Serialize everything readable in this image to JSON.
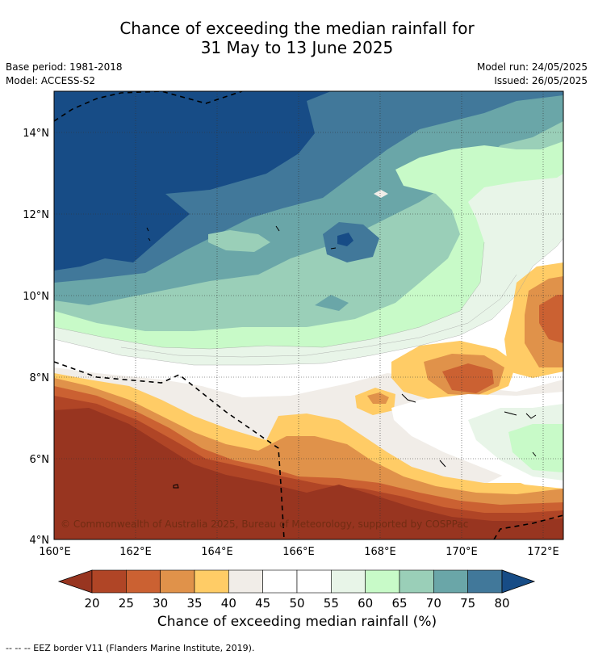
{
  "header": {
    "title_line1": "Chance of exceeding the median rainfall for",
    "title_line2": "31 May to 13 June 2025",
    "base_period": "Base period: 1981-2018",
    "model": "Model: ACCESS-S2",
    "model_run": "Model run: 24/05/2025",
    "issued": "Issued: 26/05/2025"
  },
  "map": {
    "lat_labels": [
      "14°N",
      "12°N",
      "10°N",
      "8°N",
      "6°N",
      "4°N"
    ],
    "lon_labels": [
      "160°E",
      "162°E",
      "164°E",
      "166°E",
      "168°E",
      "170°E",
      "172°E"
    ],
    "copyright": "© Commonwealth of Australia 2025, Bureau of Meteorology, supported by COSPPac",
    "extent": {
      "lon": [
        160,
        172.5
      ],
      "lat": [
        4,
        15
      ]
    }
  },
  "colorbar": {
    "ticks": [
      "20",
      "25",
      "30",
      "35",
      "40",
      "45",
      "50",
      "55",
      "60",
      "65",
      "70",
      "75",
      "80"
    ],
    "colors": [
      "#983520",
      "#b04526",
      "#cb6132",
      "#e0924a",
      "#ffcc66",
      "#f1ede8",
      "#ffffff",
      "#ffffff",
      "#e8f5e8",
      "#c8fac8",
      "#9acfb8",
      "#6aa6a8",
      "#41789a",
      "#174c86"
    ],
    "label": "Chance of exceeding median rainfall (%)"
  },
  "footnote": "--  --  -- EEZ border V11 (Flanders Marine Institute, 2019)."
}
